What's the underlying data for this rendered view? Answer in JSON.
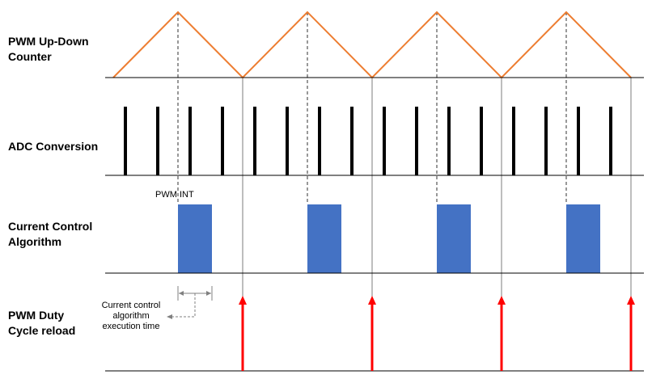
{
  "rows": {
    "pwm_counter": {
      "label": "PWM Up-Down\nCounter"
    },
    "adc": {
      "label": "ADC Conversion"
    },
    "current_control": {
      "label": "Current Control\nAlgorithm"
    },
    "duty_reload": {
      "label": "PWM Duty\nCycle reload"
    }
  },
  "annotations": {
    "pwm_int": "PWM INT",
    "exec_time": "Current control\nalgorithm\nexecution time"
  },
  "colors": {
    "triangle": "#ED7D31",
    "adc_pulse": "#000000",
    "algorithm_block": "#4472C4",
    "reload_arrow": "#FF0000",
    "guide_line": "#000000",
    "exec_arrow": "#808080"
  },
  "timing": {
    "periods": 4,
    "adc_conversions_per_period": 4,
    "algorithm_blocks": 4,
    "duty_reloads": 4
  }
}
